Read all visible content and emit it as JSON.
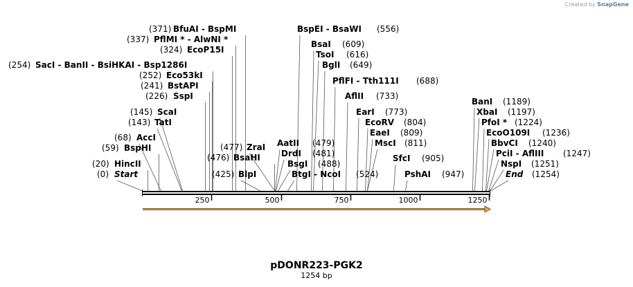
{
  "credit": {
    "prefix": "Created by",
    "brand": "SnapGene"
  },
  "map": {
    "title": "pDONR223-PGK2",
    "subtitle": "1254 bp",
    "length": 1254,
    "ticks": [
      "250",
      "500",
      "750",
      "1000",
      "1250"
    ],
    "features": [
      {
        "name": "Start",
        "pos": "(0)",
        "italic": true
      },
      {
        "name": "HincII",
        "pos": "(20)"
      },
      {
        "name": "BspHI",
        "pos": "(59)"
      },
      {
        "name": "AccI",
        "pos": "(68)"
      },
      {
        "name": "TatI",
        "pos": "(143)"
      },
      {
        "name": "ScaI",
        "pos": "(145)"
      },
      {
        "name": "SspI",
        "pos": "(226)"
      },
      {
        "name": "BstAPI",
        "pos": "(241)"
      },
      {
        "name": "Eco53kI",
        "pos": "(252)"
      },
      {
        "name": "SacI - BanII - BsiHKAI - Bsp1286I",
        "pos": "(254)"
      },
      {
        "name": "EcoP15I",
        "pos": "(324)"
      },
      {
        "name": "PflMI * - AlwNI *",
        "pos": "(337)"
      },
      {
        "name": "BfuAI - BspMI",
        "pos": "(371)"
      },
      {
        "name": "BlpI",
        "pos": "(425)"
      },
      {
        "name": "BsaHI",
        "pos": "(476)"
      },
      {
        "name": "ZraI",
        "pos": "(477)"
      },
      {
        "name": "AatII",
        "pos": "(479)"
      },
      {
        "name": "DrdI",
        "pos": "(481)"
      },
      {
        "name": "BsgI",
        "pos": "(488)"
      },
      {
        "name": "BtgI - NcoI",
        "pos": "(524)"
      },
      {
        "name": "BspEI - BsaWI",
        "pos": "(556)"
      },
      {
        "name": "BsaI",
        "pos": "(609)"
      },
      {
        "name": "TsoI",
        "pos": "(616)"
      },
      {
        "name": "BglI",
        "pos": "(649)"
      },
      {
        "name": "PflFI - Tth111I",
        "pos": "(688)"
      },
      {
        "name": "AflII",
        "pos": "(733)"
      },
      {
        "name": "EarI",
        "pos": "(773)"
      },
      {
        "name": "EcoRV",
        "pos": "(804)"
      },
      {
        "name": "EaeI",
        "pos": "(809)"
      },
      {
        "name": "MscI",
        "pos": "(811)"
      },
      {
        "name": "SfcI",
        "pos": "(905)"
      },
      {
        "name": "PshAI",
        "pos": "(947)"
      },
      {
        "name": "BanI",
        "pos": "(1189)"
      },
      {
        "name": "XbaI",
        "pos": "(1197)"
      },
      {
        "name": "PfoI *",
        "pos": "(1224)"
      },
      {
        "name": "EcoO109I",
        "pos": "(1236)"
      },
      {
        "name": "BbvCI",
        "pos": "(1240)"
      },
      {
        "name": "PciI - AflIII",
        "pos": "(1247)"
      },
      {
        "name": "NspI",
        "pos": "(1251)"
      },
      {
        "name": "End",
        "pos": "(1254)",
        "italic": true
      }
    ]
  }
}
